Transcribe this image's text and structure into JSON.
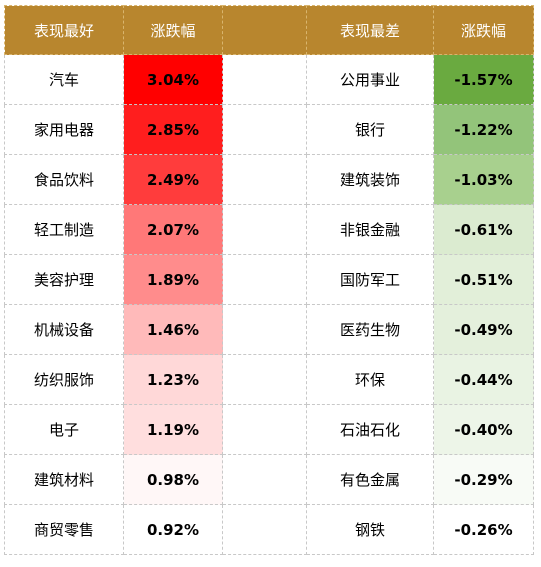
{
  "header": {
    "best_label": "表现最好",
    "worst_label": "表现最差",
    "change_label": "涨跌幅"
  },
  "colors": {
    "header_bg": "#b8862e",
    "header_text": "#ffffff"
  },
  "chart_data": {
    "type": "table",
    "columns": [
      "表现最好",
      "涨跌幅",
      "表现最差",
      "涨跌幅"
    ],
    "best": [
      {
        "name": "汽车",
        "value": "3.04%",
        "pct": 3.04,
        "color": "#ff0000"
      },
      {
        "name": "家用电器",
        "value": "2.85%",
        "pct": 2.85,
        "color": "#ff1e1e"
      },
      {
        "name": "食品饮料",
        "value": "2.49%",
        "pct": 2.49,
        "color": "#ff3c3c"
      },
      {
        "name": "轻工制造",
        "value": "2.07%",
        "pct": 2.07,
        "color": "#ff7878"
      },
      {
        "name": "美容护理",
        "value": "1.89%",
        "pct": 1.89,
        "color": "#ff8c8c"
      },
      {
        "name": "机械设备",
        "value": "1.46%",
        "pct": 1.46,
        "color": "#ffbaba"
      },
      {
        "name": "纺织服饰",
        "value": "1.23%",
        "pct": 1.23,
        "color": "#ffd8d8"
      },
      {
        "name": "电子",
        "value": "1.19%",
        "pct": 1.19,
        "color": "#ffdede"
      },
      {
        "name": "建筑材料",
        "value": "0.98%",
        "pct": 0.98,
        "color": "#fff7f7"
      },
      {
        "name": "商贸零售",
        "value": "0.92%",
        "pct": 0.92,
        "color": "#ffffff"
      }
    ],
    "worst": [
      {
        "name": "公用事业",
        "value": "-1.57%",
        "pct": -1.57,
        "color": "#6aaa40"
      },
      {
        "name": "银行",
        "value": "-1.22%",
        "pct": -1.22,
        "color": "#93c47a"
      },
      {
        "name": "建筑装饰",
        "value": "-1.03%",
        "pct": -1.03,
        "color": "#a8d08e"
      },
      {
        "name": "非银金融",
        "value": "-0.61%",
        "pct": -0.61,
        "color": "#dbebd0"
      },
      {
        "name": "国防军工",
        "value": "-0.51%",
        "pct": -0.51,
        "color": "#e2efd9"
      },
      {
        "name": "医药生物",
        "value": "-0.49%",
        "pct": -0.49,
        "color": "#e4f0dc"
      },
      {
        "name": "环保",
        "value": "-0.44%",
        "pct": -0.44,
        "color": "#e9f3e3"
      },
      {
        "name": "石油石化",
        "value": "-0.40%",
        "pct": -0.4,
        "color": "#edf5e8"
      },
      {
        "name": "有色金属",
        "value": "-0.29%",
        "pct": -0.29,
        "color": "#f8fbf6"
      },
      {
        "name": "钢铁",
        "value": "-0.26%",
        "pct": -0.26,
        "color": "#ffffff"
      }
    ]
  }
}
